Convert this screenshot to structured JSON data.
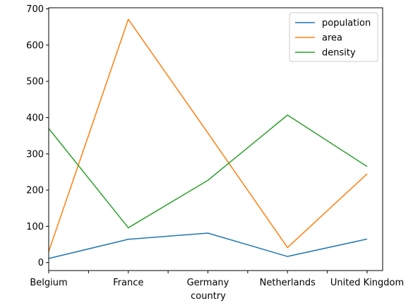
{
  "chart_data": {
    "type": "line",
    "categories": [
      "Belgium",
      "France",
      "Germany",
      "Netherlands",
      "United Kingdom"
    ],
    "series": [
      {
        "name": "population",
        "color": "#1f77b4",
        "values": [
          11.3,
          64.3,
          81.3,
          16.9,
          64.9
        ]
      },
      {
        "name": "area",
        "color": "#ff7f0e",
        "values": [
          30.5,
          671.3,
          357.4,
          41.5,
          244.8
        ]
      },
      {
        "name": "density",
        "color": "#2ca02c",
        "values": [
          370,
          96,
          227,
          407,
          265
        ]
      }
    ],
    "xlabel": "country",
    "ylabel": "",
    "title": "",
    "ylim": [
      -22,
      703
    ],
    "yticks": [
      0,
      100,
      200,
      300,
      400,
      500,
      600,
      700
    ],
    "grid": false,
    "legend_position": "top-right"
  }
}
